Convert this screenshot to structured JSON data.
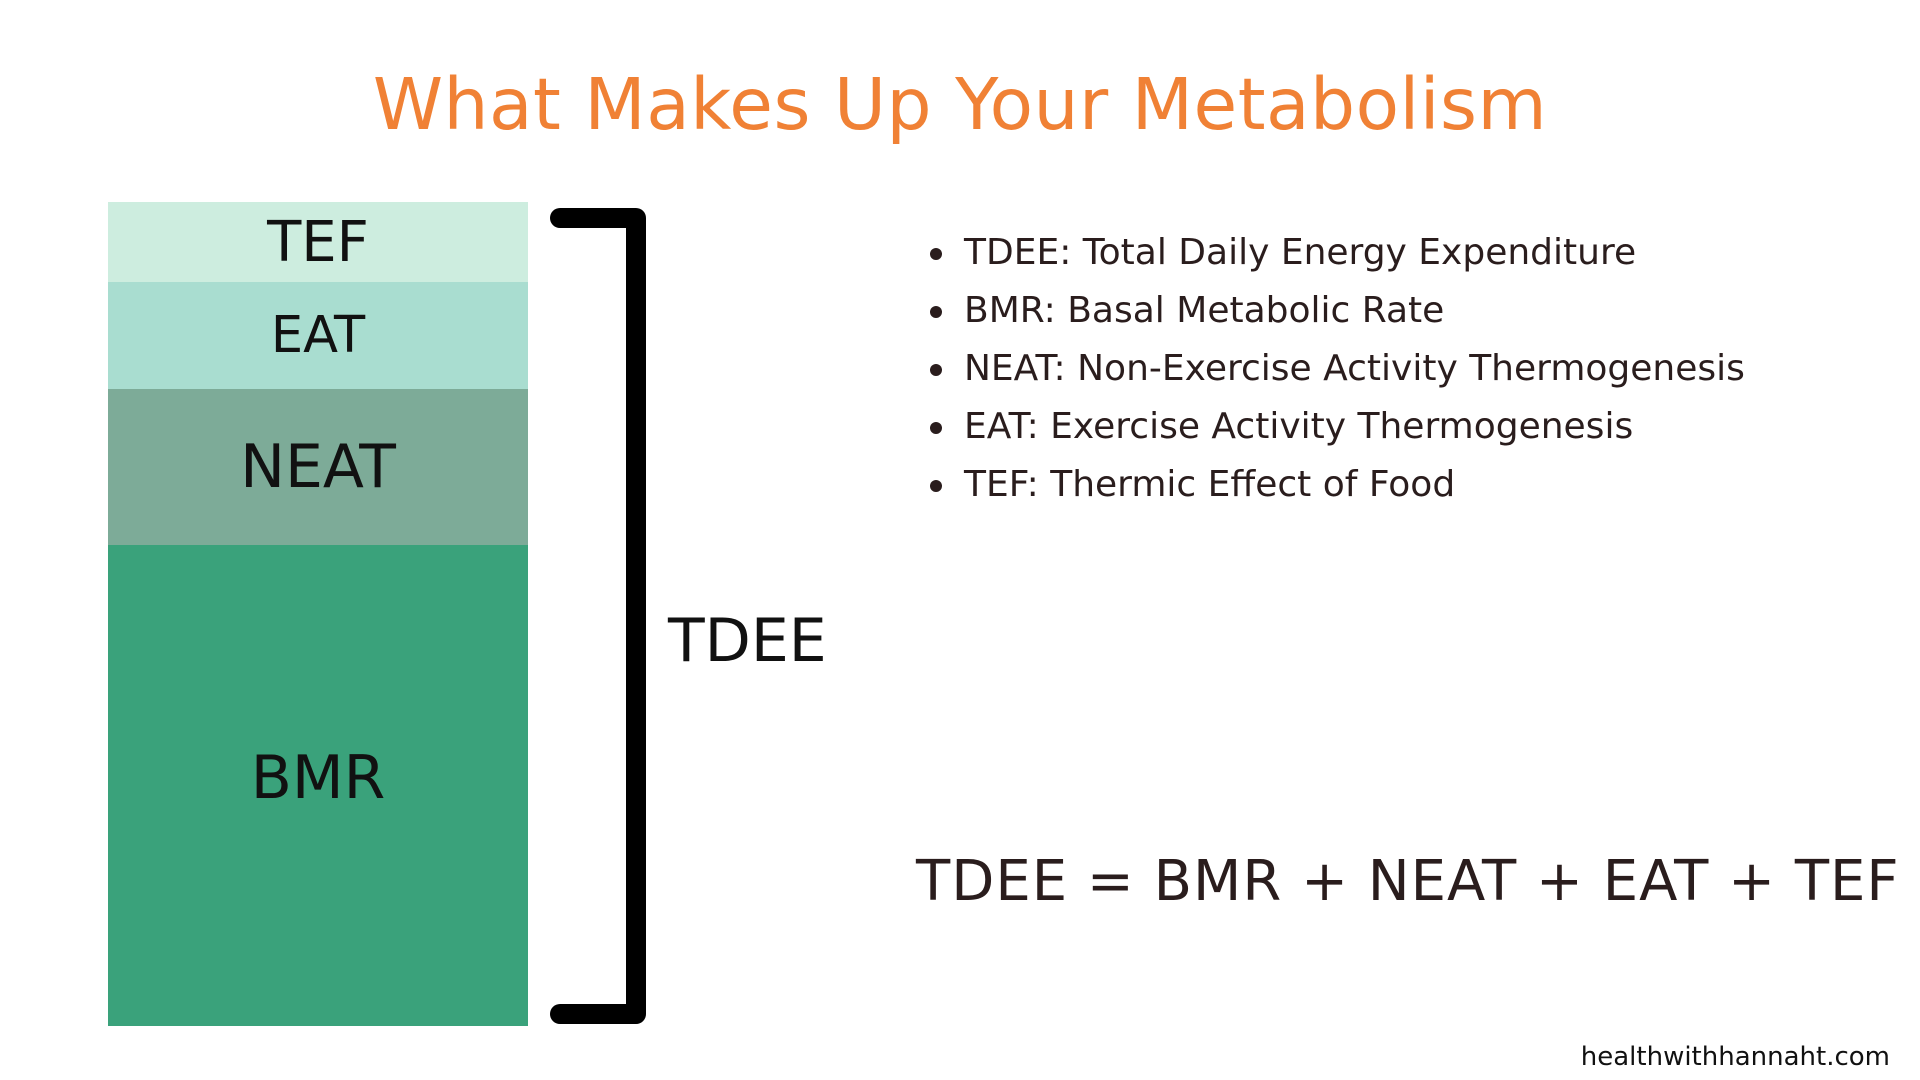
{
  "title": "What Makes Up Your Metabolism",
  "colors": {
    "title": "#f08135",
    "tef": "#cdeddf",
    "eat": "#a9ddd0",
    "neat": "#7dab98",
    "bmr": "#3aa27b",
    "bracket": "#000000",
    "text": "#2a1d1d"
  },
  "stack": {
    "segments": [
      {
        "key": "tef",
        "label": "TEF"
      },
      {
        "key": "eat",
        "label": "EAT"
      },
      {
        "key": "neat",
        "label": "NEAT"
      },
      {
        "key": "bmr",
        "label": "BMR"
      }
    ]
  },
  "bracket_label": "TDEE",
  "definitions": [
    "TDEE: Total Daily Energy Expenditure",
    "BMR: Basal Metabolic Rate",
    "NEAT: Non-Exercise Activity Thermogenesis",
    "EAT: Exercise Activity Thermogenesis",
    "TEF: Thermic Effect of Food"
  ],
  "equation": "TDEE = BMR + NEAT + EAT + TEF",
  "website": "healthwithhannaht.com"
}
